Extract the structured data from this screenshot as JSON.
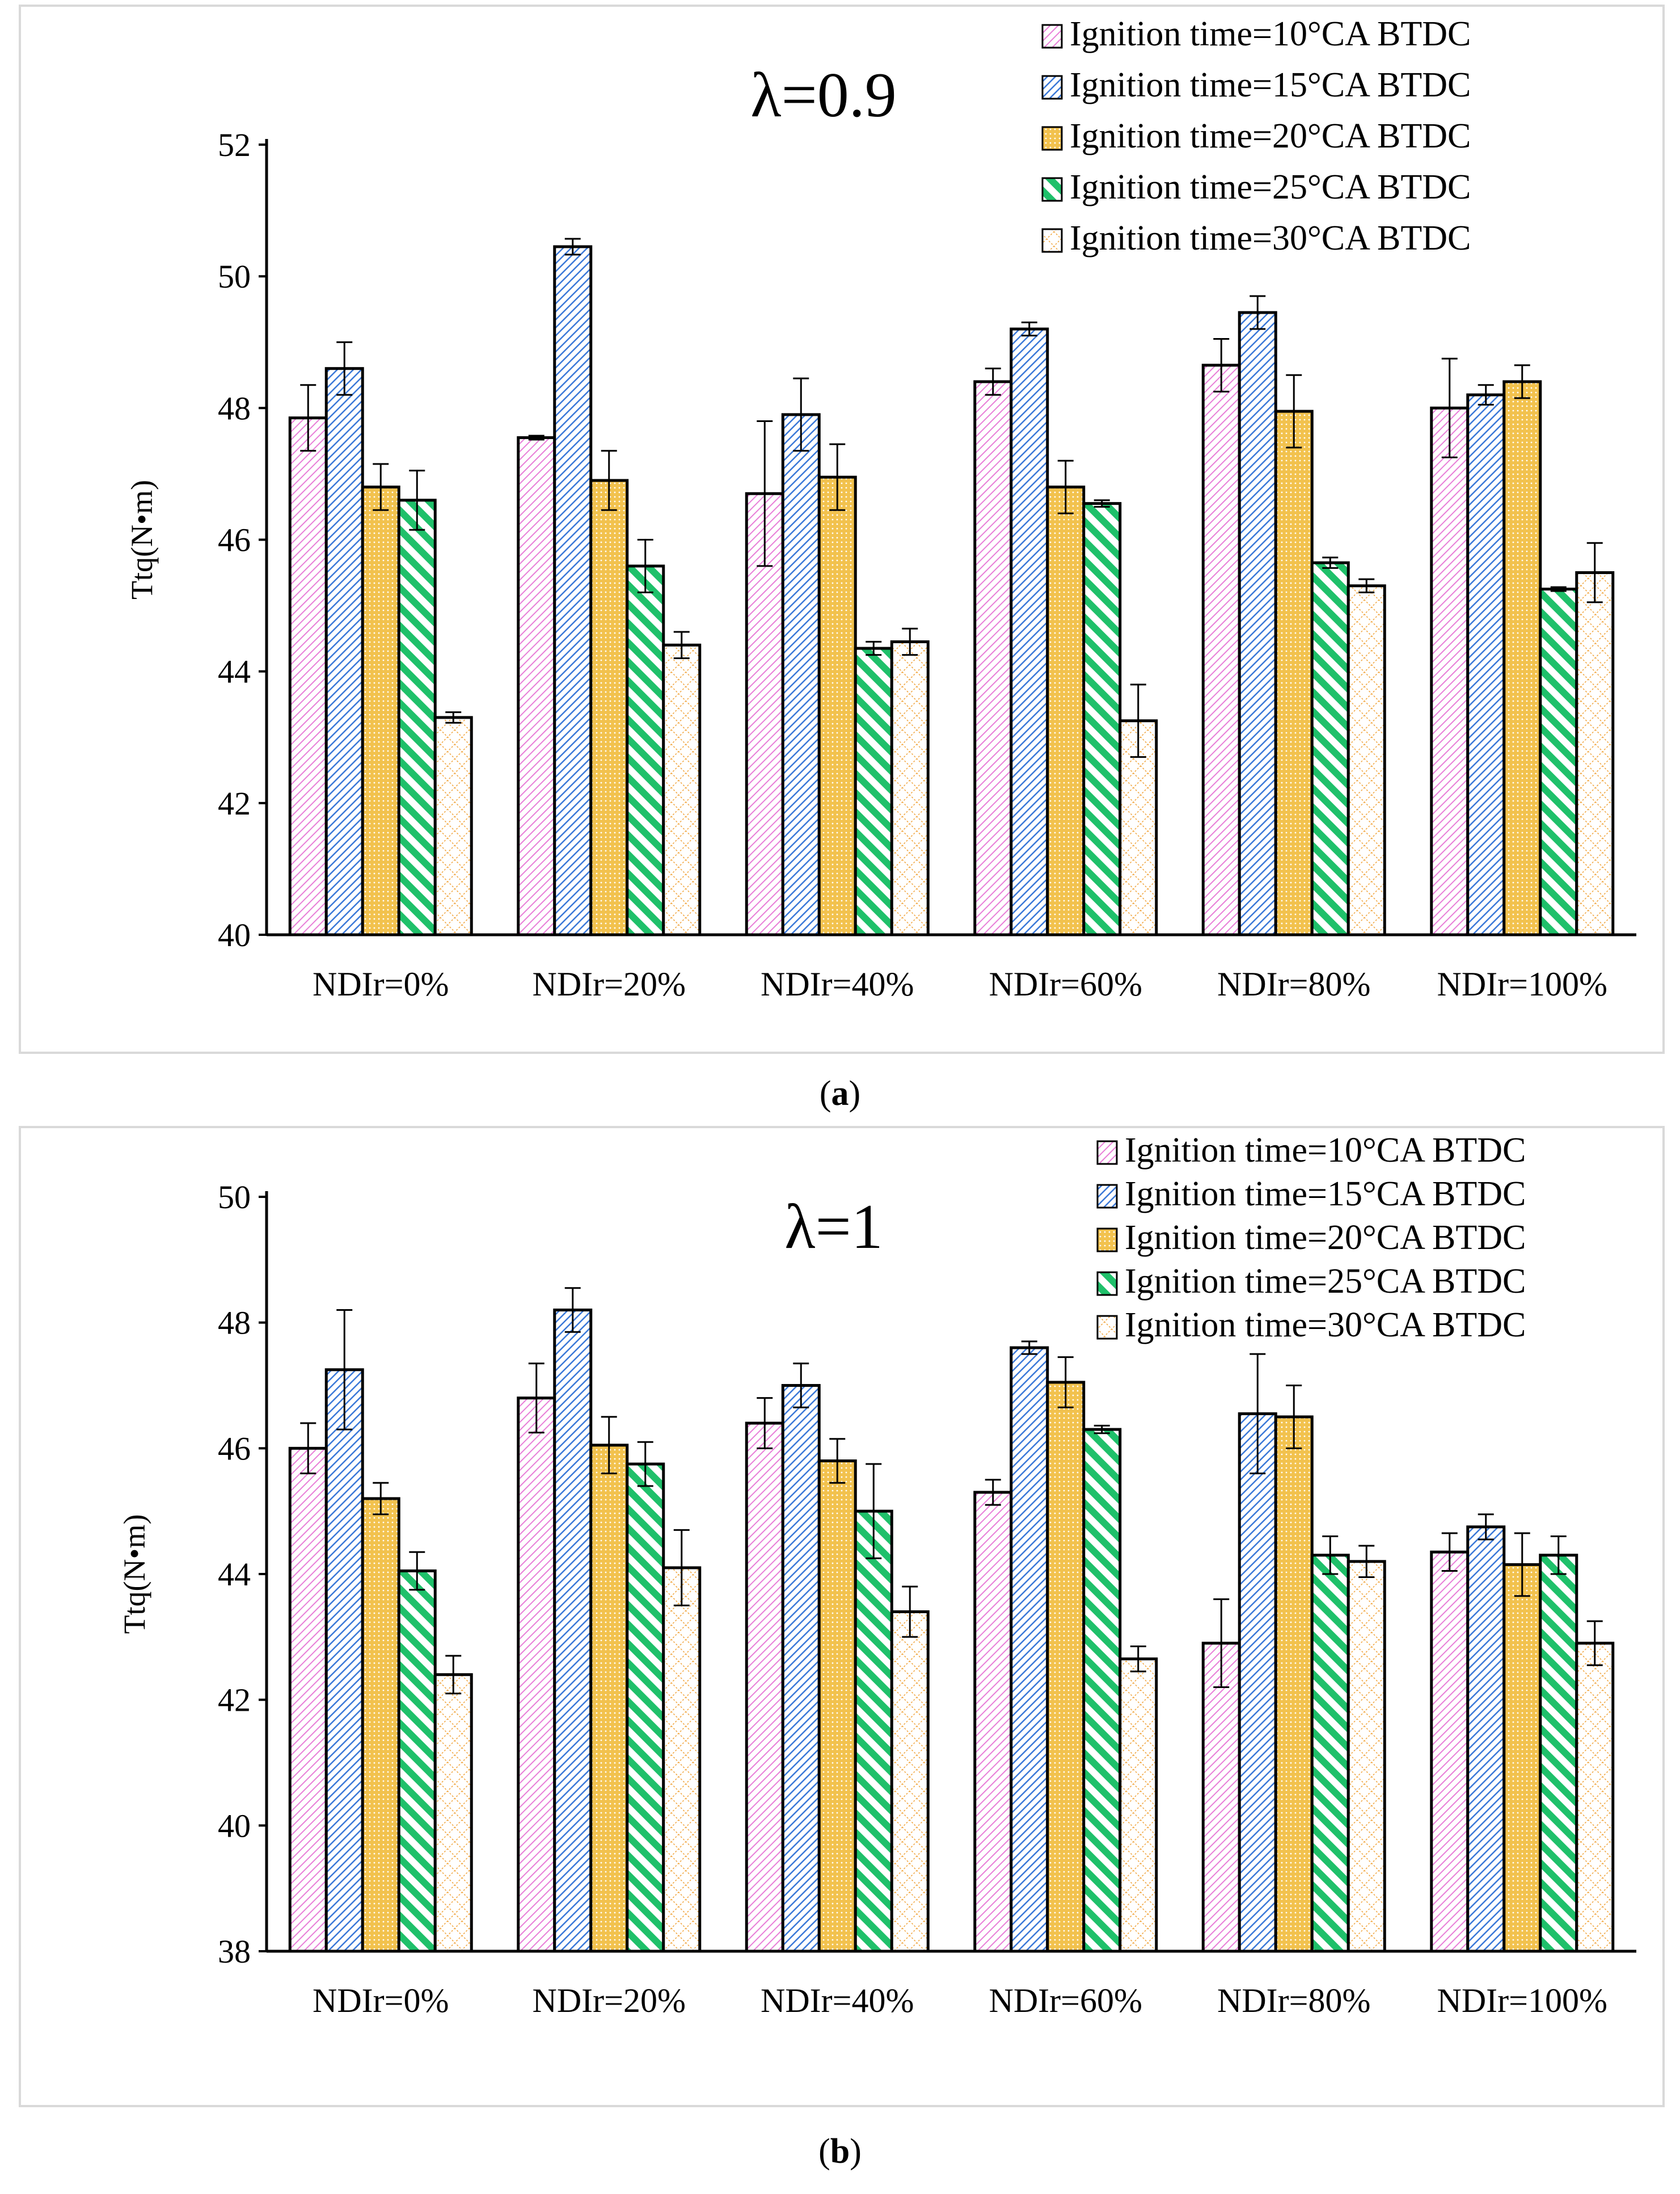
{
  "captions": {
    "a": "a",
    "b": "b"
  },
  "colors": {
    "s10": "#e87fd8",
    "s15": "#3a78d8",
    "s20": "#f2c24e",
    "s25": "#1fc06a",
    "s30": "#f0a33a"
  },
  "chart_data": [
    {
      "type": "bar",
      "title": "λ=0.9",
      "xlabel": "",
      "ylabel": "Ttq(N•m)",
      "ylim": [
        40,
        52
      ],
      "yticks": [
        "40",
        "42",
        "44",
        "46",
        "48",
        "50",
        "52"
      ],
      "categories": [
        "NDIr=0%",
        "NDIr=20%",
        "NDIr=40%",
        "NDIr=60%",
        "NDIr=80%",
        "NDIr=100%"
      ],
      "legend_position": "top-right",
      "series": [
        {
          "name": "Ignition time=10°CA BTDC",
          "values": [
            47.85,
            47.55,
            46.7,
            48.4,
            48.65,
            48.0
          ],
          "errors": [
            0.5,
            0.03,
            1.1,
            0.2,
            0.4,
            0.75
          ]
        },
        {
          "name": "Ignition time=15°CA BTDC",
          "values": [
            48.6,
            50.45,
            47.9,
            49.2,
            49.45,
            48.2
          ],
          "errors": [
            0.4,
            0.12,
            0.55,
            0.1,
            0.25,
            0.15
          ]
        },
        {
          "name": "Ignition time=20°CA BTDC",
          "values": [
            46.8,
            46.9,
            46.95,
            46.8,
            47.95,
            48.4
          ],
          "errors": [
            0.35,
            0.45,
            0.5,
            0.4,
            0.55,
            0.25
          ]
        },
        {
          "name": "Ignition time=25°CA BTDC",
          "values": [
            46.6,
            45.6,
            44.35,
            46.55,
            45.65,
            45.25
          ],
          "errors": [
            0.45,
            0.4,
            0.1,
            0.05,
            0.08,
            0.03
          ]
        },
        {
          "name": "Ignition time=30°CA BTDC",
          "values": [
            43.3,
            44.4,
            44.45,
            43.25,
            45.3,
            45.5
          ],
          "errors": [
            0.08,
            0.2,
            0.2,
            0.55,
            0.1,
            0.45
          ]
        }
      ]
    },
    {
      "type": "bar",
      "title": "λ=1",
      "xlabel": "",
      "ylabel": "Ttq(N•m)",
      "ylim": [
        38,
        50
      ],
      "yticks": [
        "38",
        "40",
        "42",
        "44",
        "46",
        "48",
        "50"
      ],
      "categories": [
        "NDIr=0%",
        "NDIr=20%",
        "NDIr=40%",
        "NDIr=60%",
        "NDIr=80%",
        "NDIr=100%"
      ],
      "legend_position": "top-right",
      "series": [
        {
          "name": "Ignition time=10°CA BTDC",
          "values": [
            46.0,
            46.8,
            46.4,
            45.3,
            42.9,
            44.35
          ],
          "errors": [
            0.4,
            0.55,
            0.4,
            0.2,
            0.7,
            0.3
          ]
        },
        {
          "name": "Ignition time=15°CA BTDC",
          "values": [
            47.25,
            48.2,
            47.0,
            47.6,
            46.55,
            44.75
          ],
          "errors": [
            0.95,
            0.35,
            0.35,
            0.1,
            0.95,
            0.2
          ]
        },
        {
          "name": "Ignition time=20°CA BTDC",
          "values": [
            45.2,
            46.05,
            45.8,
            47.05,
            46.5,
            44.15
          ],
          "errors": [
            0.25,
            0.45,
            0.35,
            0.4,
            0.5,
            0.5
          ]
        },
        {
          "name": "Ignition time=25°CA BTDC",
          "values": [
            44.05,
            45.75,
            45.0,
            46.3,
            44.3,
            44.3
          ],
          "errors": [
            0.3,
            0.35,
            0.75,
            0.06,
            0.3,
            0.3
          ]
        },
        {
          "name": "Ignition time=30°CA BTDC",
          "values": [
            42.4,
            44.1,
            43.4,
            42.65,
            44.2,
            42.9
          ],
          "errors": [
            0.3,
            0.6,
            0.4,
            0.2,
            0.25,
            0.35
          ]
        }
      ]
    }
  ]
}
